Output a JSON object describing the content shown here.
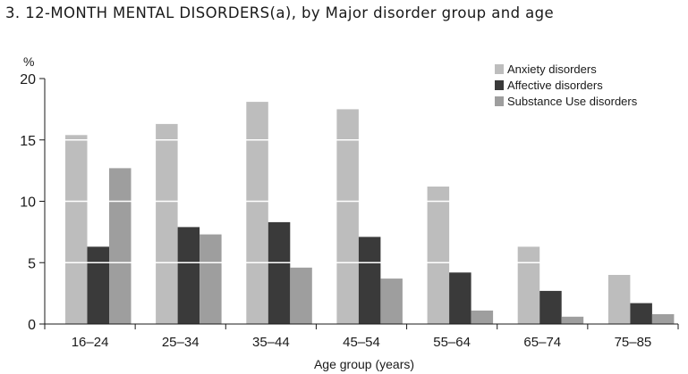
{
  "chart_data": {
    "type": "bar",
    "title": "3. 12-MONTH MENTAL DISORDERS(a), by Major disorder group and age",
    "xlabel": "Age group (years)",
    "ylabel": "%",
    "ylim": [
      0,
      20
    ],
    "yticks": [
      "0",
      "5",
      "10",
      "15",
      "20"
    ],
    "grid": "horizontal white lines inside bars",
    "legend_position": "top-right",
    "categories": [
      "16–24",
      "25–34",
      "35–44",
      "45–54",
      "55–64",
      "65–74",
      "75–85"
    ],
    "series": [
      {
        "name": "Anxiety disorders",
        "color": "#bdbdbd",
        "values": [
          15.4,
          16.3,
          18.1,
          17.5,
          11.2,
          6.3,
          4.0
        ]
      },
      {
        "name": "Affective disorders",
        "color": "#3a3a3a",
        "values": [
          6.3,
          7.9,
          8.3,
          7.1,
          4.2,
          2.7,
          1.7
        ]
      },
      {
        "name": "Substance Use disorders",
        "color": "#9e9e9e",
        "values": [
          12.7,
          7.3,
          4.6,
          3.7,
          1.1,
          0.6,
          0.8
        ]
      }
    ]
  }
}
